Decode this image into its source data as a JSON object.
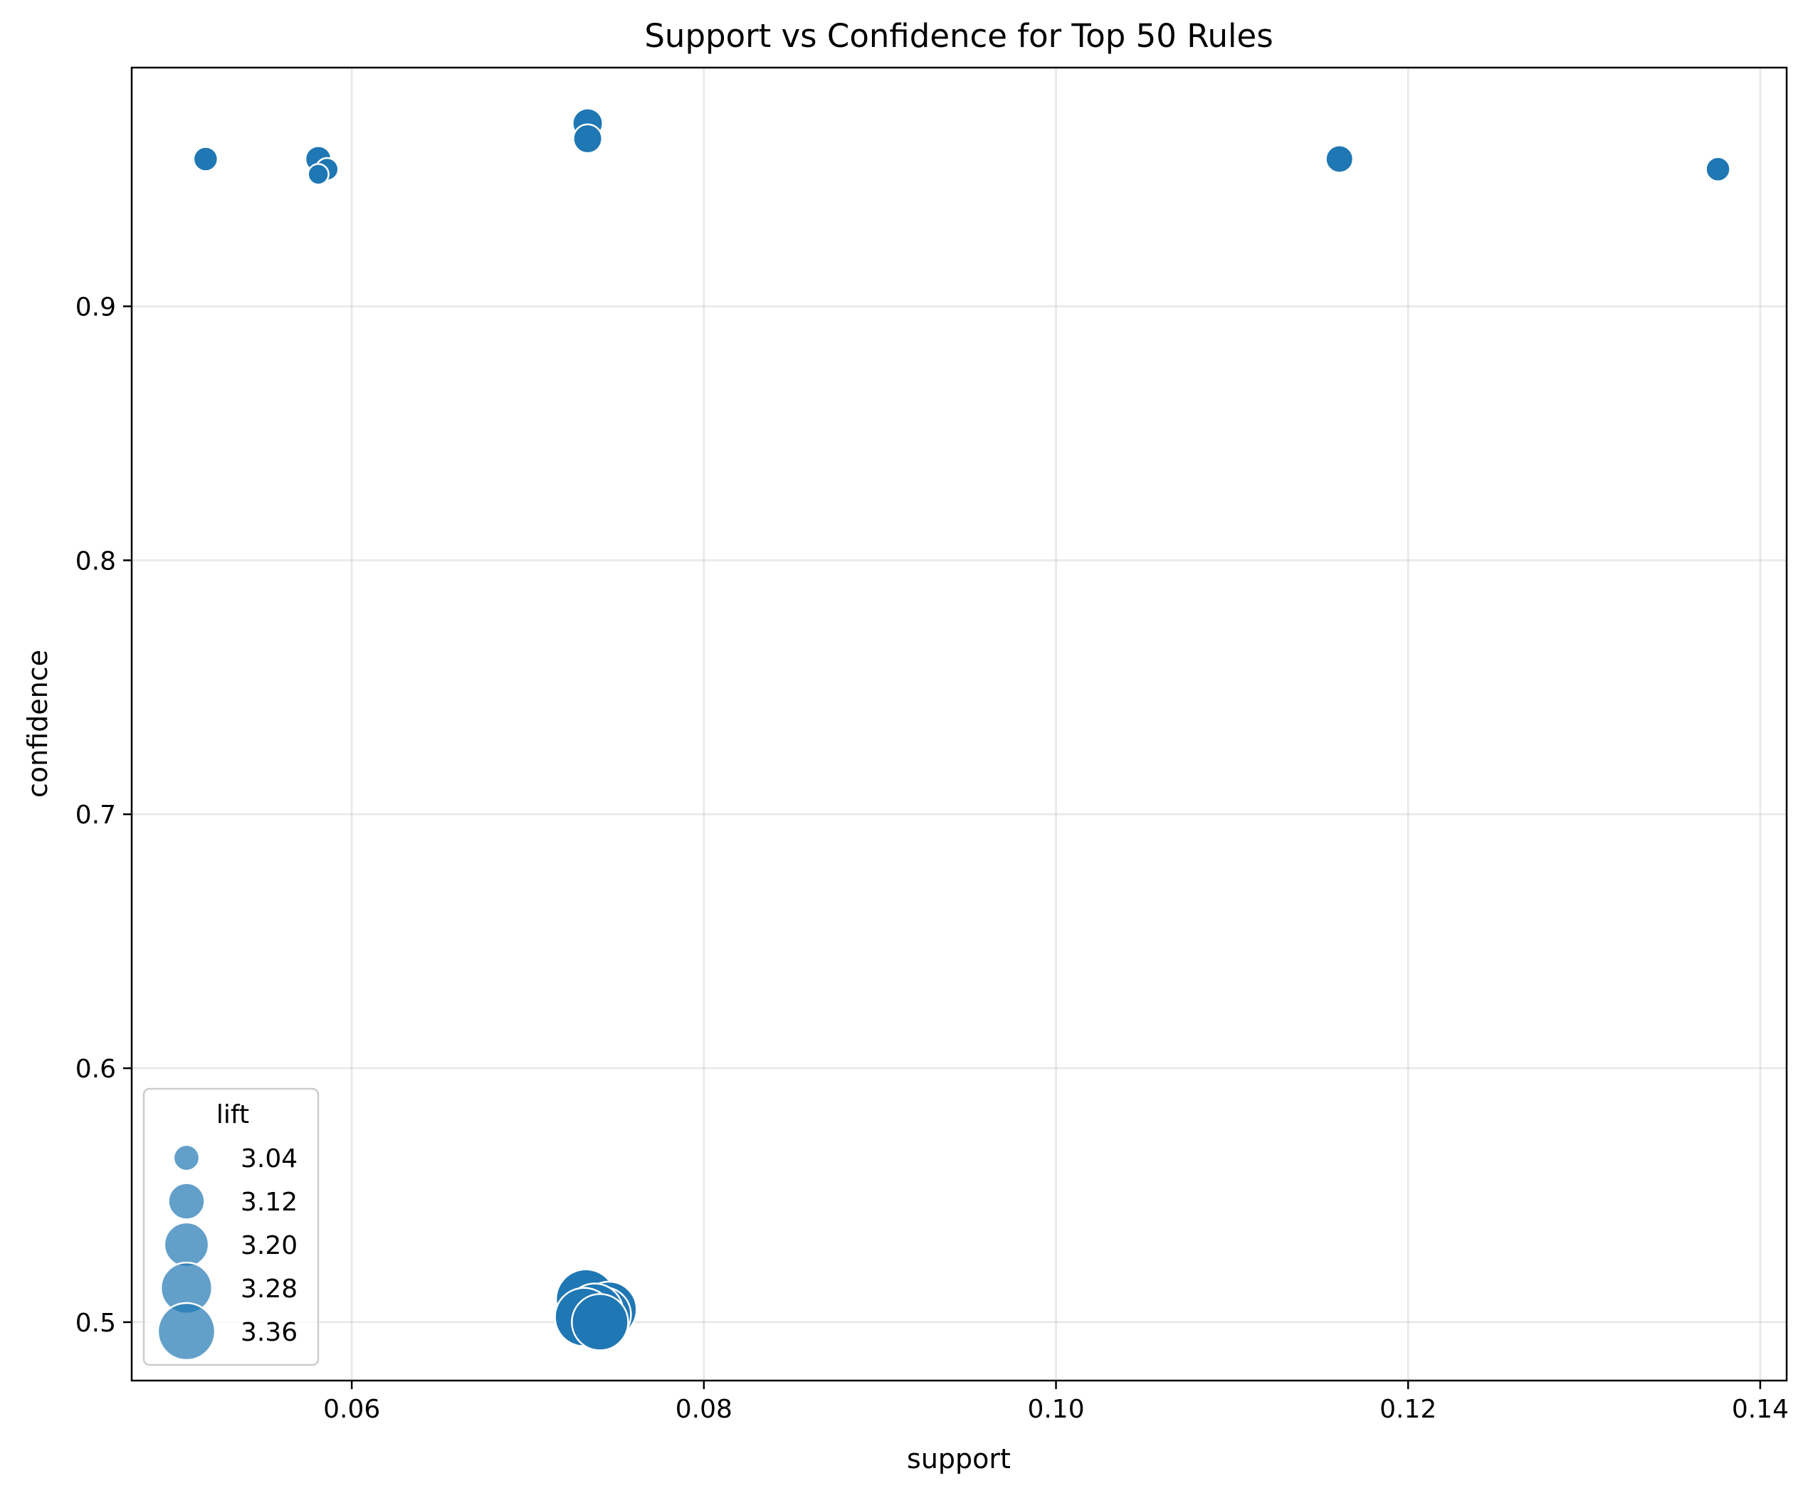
{
  "chart_data": {
    "type": "scatter",
    "title": "Support vs Confidence for Top 50 Rules",
    "xlabel": "support",
    "ylabel": "confidence",
    "xlim": [
      0.0475,
      0.1415
    ],
    "ylim": [
      0.477,
      0.994
    ],
    "xticks": [
      0.06,
      0.08,
      0.1,
      0.12,
      0.14
    ],
    "xtick_labels": [
      "0.06",
      "0.08",
      "0.10",
      "0.12",
      "0.14"
    ],
    "yticks": [
      0.5,
      0.6,
      0.7,
      0.8,
      0.9
    ],
    "ytick_labels": [
      "0.5",
      "0.6",
      "0.7",
      "0.8",
      "0.9"
    ],
    "grid": true,
    "marker_color": "#1f77b4",
    "legend": {
      "title": "lift",
      "placement": "lower-left",
      "entries": [
        {
          "label": "3.04",
          "lift": 3.04
        },
        {
          "label": "3.12",
          "lift": 3.12
        },
        {
          "label": "3.20",
          "lift": 3.2
        },
        {
          "label": "3.28",
          "lift": 3.28
        },
        {
          "label": "3.36",
          "lift": 3.36
        }
      ]
    },
    "size_encoding": "lift",
    "size_range_lift": [
      3.0,
      3.4
    ],
    "points": [
      {
        "support": 0.0517,
        "confidence": 0.958,
        "lift": 3.03
      },
      {
        "support": 0.0581,
        "confidence": 0.958,
        "lift": 3.04
      },
      {
        "support": 0.0586,
        "confidence": 0.954,
        "lift": 3.02
      },
      {
        "support": 0.0581,
        "confidence": 0.952,
        "lift": 3.01
      },
      {
        "support": 0.0734,
        "confidence": 0.972,
        "lift": 3.07
      },
      {
        "support": 0.0734,
        "confidence": 0.966,
        "lift": 3.06
      },
      {
        "support": 0.1161,
        "confidence": 0.958,
        "lift": 3.05
      },
      {
        "support": 0.1376,
        "confidence": 0.954,
        "lift": 3.03
      },
      {
        "support": 0.0733,
        "confidence": 0.509,
        "lift": 3.4
      },
      {
        "support": 0.0746,
        "confidence": 0.505,
        "lift": 3.34
      },
      {
        "support": 0.0743,
        "confidence": 0.503,
        "lift": 3.33
      },
      {
        "support": 0.0738,
        "confidence": 0.504,
        "lift": 3.36
      },
      {
        "support": 0.0732,
        "confidence": 0.502,
        "lift": 3.38
      },
      {
        "support": 0.0741,
        "confidence": 0.5,
        "lift": 3.35
      }
    ]
  }
}
